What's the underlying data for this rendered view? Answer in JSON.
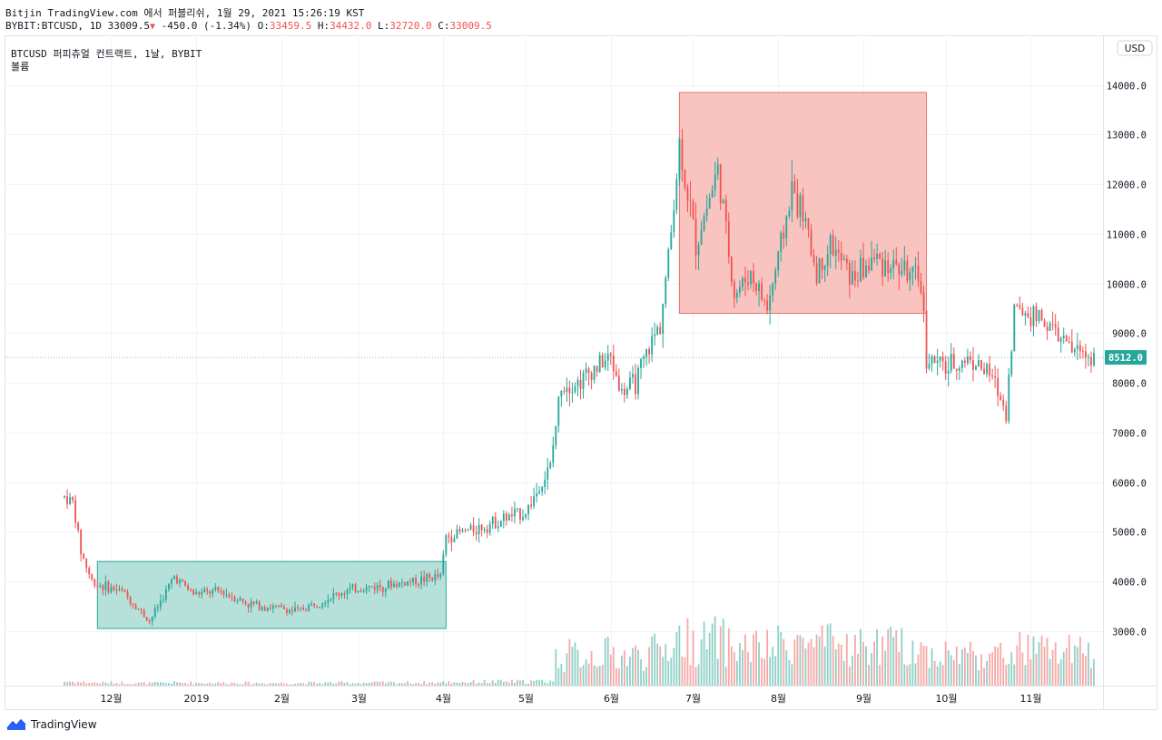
{
  "header": {
    "line1": "Bitjin TradingView.com 에서 퍼블리쉬, 1월 29, 2021 15:26:19 KST",
    "symbol": "BYBIT:BTCUSD, 1D",
    "last": "33009.5",
    "change": "-450.0 (-1.34%)",
    "o_label": "O:",
    "o": "33459.5",
    "h_label": "H:",
    "h": "34432.0",
    "l_label": "L:",
    "l": "32720.0",
    "c_label": "C:",
    "c": "33009.5"
  },
  "legend": {
    "title": "BTCUSD 퍼피츄얼 컨트랙트, 1날, BYBIT",
    "volume": "볼륨"
  },
  "currency": "USD",
  "price_badge": "8512.0",
  "brand": "TradingView",
  "colors": {
    "up": "#26a69a",
    "down": "#ef5350",
    "up_volume": "#8fd1c8",
    "down_volume": "#f6a9a7",
    "box_green_fill": "#b2dfd8",
    "box_green_border": "#26a69a",
    "box_red_fill": "#f9c1bd",
    "box_red_border": "#e57373",
    "grid": "#f0f3fa",
    "text": "#131722",
    "badge": "#26a69a"
  },
  "chart_data": {
    "type": "candlestick",
    "title": "BTCUSD 퍼피츄얼 컨트랙트, 1날, BYBIT",
    "ylim": [
      1900,
      15000
    ],
    "y_ticks": [
      3000,
      4000,
      5000,
      6000,
      7000,
      8000,
      9000,
      10000,
      11000,
      12000,
      13000,
      14000
    ],
    "y_tick_labels": [
      "3000.0",
      "4000.0",
      "5000.0",
      "6000.0",
      "7000.0",
      "8000.0",
      "9000.0",
      "10000.0",
      "11000.0",
      "12000.0",
      "13000.0",
      "14000.0"
    ],
    "x_range": [
      "2018-11-14",
      "2019-11-24"
    ],
    "x_ticks": [
      {
        "date": "2018-12-01",
        "label": "12월"
      },
      {
        "date": "2019-01-01",
        "label": "2019"
      },
      {
        "date": "2019-02-01",
        "label": "2월"
      },
      {
        "date": "2019-03-01",
        "label": "3월"
      },
      {
        "date": "2019-04-01",
        "label": "4월"
      },
      {
        "date": "2019-05-01",
        "label": "5월"
      },
      {
        "date": "2019-06-01",
        "label": "6월"
      },
      {
        "date": "2019-07-01",
        "label": "7월"
      },
      {
        "date": "2019-08-01",
        "label": "8월"
      },
      {
        "date": "2019-09-01",
        "label": "9월"
      },
      {
        "date": "2019-10-01",
        "label": "10월"
      },
      {
        "date": "2019-11-01",
        "label": "11월"
      }
    ],
    "close_anchors": [
      [
        "2018-11-14",
        5700
      ],
      [
        "2018-11-17",
        5600
      ],
      [
        "2018-11-20",
        4600
      ],
      [
        "2018-11-24",
        4000
      ],
      [
        "2018-11-28",
        3900
      ],
      [
        "2018-12-05",
        3800
      ],
      [
        "2018-12-10",
        3500
      ],
      [
        "2018-12-15",
        3200
      ],
      [
        "2018-12-19",
        3600
      ],
      [
        "2018-12-24",
        4100
      ],
      [
        "2018-12-31",
        3750
      ],
      [
        "2019-01-10",
        3800
      ],
      [
        "2019-01-20",
        3550
      ],
      [
        "2019-02-01",
        3450
      ],
      [
        "2019-02-07",
        3400
      ],
      [
        "2019-02-15",
        3600
      ],
      [
        "2019-02-24",
        3800
      ],
      [
        "2019-03-01",
        3850
      ],
      [
        "2019-03-15",
        3950
      ],
      [
        "2019-03-31",
        4100
      ],
      [
        "2019-04-02",
        4900
      ],
      [
        "2019-04-15",
        5100
      ],
      [
        "2019-04-25",
        5300
      ],
      [
        "2019-05-01",
        5400
      ],
      [
        "2019-05-10",
        6300
      ],
      [
        "2019-05-14",
        8000
      ],
      [
        "2019-05-20",
        8000
      ],
      [
        "2019-05-26",
        8300
      ],
      [
        "2019-06-01",
        8500
      ],
      [
        "2019-06-05",
        7800
      ],
      [
        "2019-06-10",
        8000
      ],
      [
        "2019-06-15",
        8700
      ],
      [
        "2019-06-19",
        9200
      ],
      [
        "2019-06-22",
        10500
      ],
      [
        "2019-06-26",
        12800
      ],
      [
        "2019-07-02",
        10800
      ],
      [
        "2019-07-10",
        12300
      ],
      [
        "2019-07-16",
        9800
      ],
      [
        "2019-07-22",
        10200
      ],
      [
        "2019-07-28",
        9500
      ],
      [
        "2019-08-01",
        10500
      ],
      [
        "2019-08-06",
        11900
      ],
      [
        "2019-08-10",
        11400
      ],
      [
        "2019-08-15",
        10200
      ],
      [
        "2019-08-20",
        10800
      ],
      [
        "2019-08-28",
        10100
      ],
      [
        "2019-09-05",
        10500
      ],
      [
        "2019-09-15",
        10300
      ],
      [
        "2019-09-22",
        10000
      ],
      [
        "2019-09-24",
        8500
      ],
      [
        "2019-10-01",
        8300
      ],
      [
        "2019-10-10",
        8500
      ],
      [
        "2019-10-18",
        8100
      ],
      [
        "2019-10-23",
        7400
      ],
      [
        "2019-10-26",
        9500
      ],
      [
        "2019-11-05",
        9300
      ],
      [
        "2019-11-10",
        9000
      ],
      [
        "2019-11-15",
        8700
      ],
      [
        "2019-11-24",
        8512
      ]
    ],
    "last_close": 8512.0,
    "volume_note": "volume histogram at bottom of price pane",
    "annotations": [
      {
        "type": "rectangle",
        "color": "green",
        "x_start": "2018-11-26",
        "x_end": "2019-04-02",
        "y_low": 3050,
        "y_high": 4400
      },
      {
        "type": "rectangle",
        "color": "red",
        "x_start": "2019-06-26",
        "x_end": "2019-09-24",
        "y_low": 9400,
        "y_high": 13850
      }
    ]
  }
}
